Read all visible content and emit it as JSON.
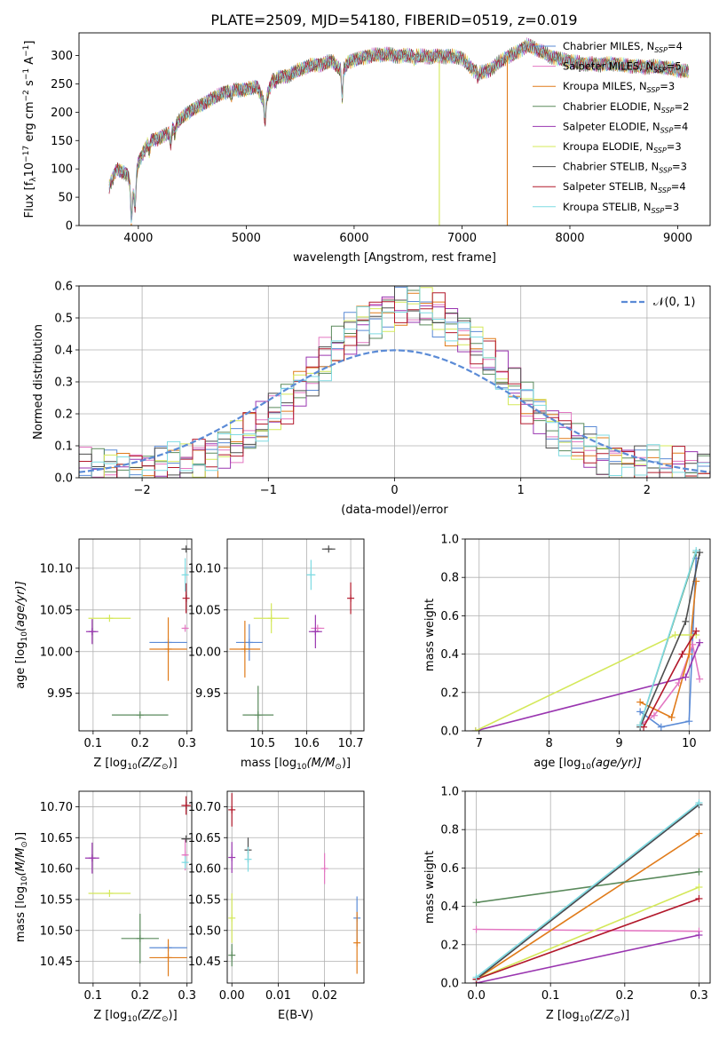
{
  "page": {
    "title": "PLATE=2509, MJD=54180, FIBERID=0519, z=0.019"
  },
  "colors": {
    "Chabrier MILES": "#5b8bd6",
    "Salpeter MILES": "#e377c2",
    "Kroupa MILES": "#e07b1a",
    "Chabrier ELODIE": "#5a8a5c",
    "Salpeter ELODIE": "#9a36b0",
    "Kroupa ELODIE": "#d4e85a",
    "Chabrier STELIB": "#4d4d4d",
    "Salpeter STELIB": "#b2182b",
    "Kroupa STELIB": "#7fdbe2",
    "normal": "#5b8bd6"
  },
  "chart_data": [
    {
      "id": "spectrum",
      "type": "line",
      "title": "PLATE=2509, MJD=54180, FIBERID=0519, z=0.019",
      "xlabel": "wavelength [Angstrom, rest frame]",
      "ylabel_parts": {
        "a": "Flux [f",
        "b": "λ",
        "c": "10",
        "d": "−17",
        "e": " erg cm",
        "f": "−2",
        "g": " s",
        "h": "−1",
        "i": " A",
        "j": "−1",
        "k": "]"
      },
      "xlim": [
        3450,
        9300
      ],
      "ylim": [
        0,
        340
      ],
      "xticks": [
        4000,
        5000,
        6000,
        7000,
        8000,
        9000
      ],
      "yticks": [
        0,
        50,
        100,
        150,
        200,
        250,
        300
      ],
      "legend_position": "upper right",
      "series": [
        {
          "base": "Chabrier MILES, N",
          "sub": "SSP",
          "suf": "=4",
          "color": "#5b8bd6"
        },
        {
          "base": "Salpeter MILES, N",
          "sub": "SSP",
          "suf": "=5",
          "color": "#e377c2"
        },
        {
          "base": "Kroupa MILES, N",
          "sub": "SSP",
          "suf": "=3",
          "color": "#e07b1a"
        },
        {
          "base": "Chabrier ELODIE, N",
          "sub": "SSP",
          "suf": "=2",
          "color": "#5a8a5c"
        },
        {
          "base": "Salpeter ELODIE, N",
          "sub": "SSP",
          "suf": "=4",
          "color": "#9a36b0"
        },
        {
          "base": "Kroupa ELODIE, N",
          "sub": "SSP",
          "suf": "=3",
          "color": "#d4e85a"
        },
        {
          "base": "Chabrier STELIB, N",
          "sub": "SSP",
          "suf": "=3",
          "color": "#4d4d4d"
        },
        {
          "base": "Salpeter STELIB, N",
          "sub": "SSP",
          "suf": "=4",
          "color": "#b2182b"
        },
        {
          "base": "Kroupa STELIB, N",
          "sub": "SSP",
          "suf": "=3",
          "color": "#7fdbe2"
        }
      ],
      "continuum": [
        [
          3730,
          70
        ],
        [
          3800,
          100
        ],
        [
          3900,
          90
        ],
        [
          3950,
          55
        ],
        [
          4000,
          110
        ],
        [
          4100,
          150
        ],
        [
          4200,
          155
        ],
        [
          4300,
          165
        ],
        [
          4400,
          190
        ],
        [
          4500,
          205
        ],
        [
          4600,
          215
        ],
        [
          4700,
          225
        ],
        [
          4800,
          235
        ],
        [
          4900,
          240
        ],
        [
          5000,
          240
        ],
        [
          5100,
          245
        ],
        [
          5170,
          215
        ],
        [
          5250,
          260
        ],
        [
          5400,
          265
        ],
        [
          5500,
          275
        ],
        [
          5600,
          283
        ],
        [
          5700,
          285
        ],
        [
          5800,
          290
        ],
        [
          5890,
          270
        ],
        [
          5950,
          290
        ],
        [
          6100,
          298
        ],
        [
          6200,
          300
        ],
        [
          6300,
          302
        ],
        [
          6400,
          300
        ],
        [
          6500,
          300
        ],
        [
          6600,
          298
        ],
        [
          6700,
          298
        ],
        [
          6800,
          300
        ],
        [
          6900,
          298
        ],
        [
          7000,
          295
        ],
        [
          7100,
          275
        ],
        [
          7200,
          270
        ],
        [
          7300,
          280
        ],
        [
          7400,
          295
        ],
        [
          7500,
          305
        ],
        [
          7600,
          318
        ],
        [
          7700,
          310
        ],
        [
          7800,
          300
        ],
        [
          7900,
          295
        ],
        [
          8000,
          290
        ],
        [
          8100,
          285
        ],
        [
          8200,
          285
        ],
        [
          8300,
          285
        ],
        [
          8400,
          285
        ],
        [
          8500,
          282
        ],
        [
          8600,
          282
        ],
        [
          8700,
          280
        ],
        [
          8800,
          280
        ],
        [
          8900,
          278
        ],
        [
          9000,
          275
        ],
        [
          9100,
          272
        ]
      ],
      "absorption_lines": [
        [
          3935,
          55
        ],
        [
          3970,
          45
        ],
        [
          4102,
          20
        ],
        [
          4300,
          20
        ],
        [
          4340,
          15
        ],
        [
          4861,
          10
        ],
        [
          5175,
          35
        ],
        [
          5270,
          10
        ],
        [
          5890,
          45
        ],
        [
          6563,
          8
        ],
        [
          7150,
          12
        ]
      ],
      "dropouts": [
        {
          "name": "Kroupa MILES",
          "x": 3935,
          "color": "#e07b1a"
        },
        {
          "name": "Kroupa ELODIE",
          "x": 6790,
          "color": "#d4e85a"
        },
        {
          "name": "Kroupa MILES",
          "x": 7420,
          "color": "#e07b1a"
        }
      ]
    },
    {
      "id": "residuals",
      "type": "line",
      "xlabel": "(data-model)/error",
      "ylabel": "Normed distribution",
      "xlim": [
        -2.5,
        2.5
      ],
      "ylim": [
        0,
        0.6
      ],
      "xticks": [
        -2,
        -1,
        0,
        1,
        2
      ],
      "yticks": [
        0.0,
        0.1,
        0.2,
        0.3,
        0.4,
        0.5,
        0.6
      ],
      "grid": true,
      "legend_label": "𝒩(0, 1)",
      "legend_position": "upper right",
      "normal_curve": {
        "mean": 0,
        "sigma": 1
      },
      "bin_width": 0.1
    },
    {
      "id": "age_vs_Z",
      "type": "scatter",
      "xlabel_parts": {
        "a": "Z [log",
        "b": "10",
        "c": "(Z/Z",
        "d": "⊙",
        "e": ")]"
      },
      "ylabel_parts": {
        "a": "age  [log",
        "b": "10",
        "c": "(age/yr)]"
      },
      "xlim": [
        0.07,
        0.31
      ],
      "ylim": [
        9.905,
        10.135
      ],
      "xticks": [
        0.1,
        0.2,
        0.3
      ],
      "yticks": [
        9.95,
        10.0,
        10.05,
        10.1
      ],
      "points": [
        {
          "name": "Chabrier MILES",
          "x": 0.26,
          "y": 10.011,
          "xerr": 0.04,
          "yerr": 0.0
        },
        {
          "name": "Salpeter MILES",
          "x": 0.296,
          "y": 10.028,
          "xerr": 0.005,
          "yerr": 0.0
        },
        {
          "name": "Kroupa MILES",
          "x": 0.26,
          "y": 10.003,
          "xerr": 0.04,
          "yerr": 0.038
        },
        {
          "name": "Chabrier ELODIE",
          "x": 0.2,
          "y": 9.924,
          "xerr": 0.06,
          "yerr": 0.0
        },
        {
          "name": "Salpeter ELODIE",
          "x": 0.098,
          "y": 10.024,
          "xerr": 0.013,
          "yerr": 0.015
        },
        {
          "name": "Kroupa ELODIE",
          "x": 0.135,
          "y": 10.04,
          "xerr": 0.045,
          "yerr": 0.0
        },
        {
          "name": "Chabrier STELIB",
          "x": 0.298,
          "y": 10.123,
          "xerr": 0.01,
          "yerr": 0.0
        },
        {
          "name": "Salpeter STELIB",
          "x": 0.298,
          "y": 10.064,
          "xerr": 0.0,
          "yerr": 0.018
        },
        {
          "name": "Kroupa STELIB",
          "x": 0.296,
          "y": 10.092,
          "xerr": 0.005,
          "yerr": 0.02
        }
      ]
    },
    {
      "id": "age_vs_mass",
      "type": "scatter",
      "xlabel_parts": {
        "a": "mass [log",
        "b": "10",
        "c": "(M/M",
        "d": "⊙",
        "e": ")]"
      },
      "xlim": [
        10.42,
        10.73
      ],
      "ylim": [
        9.905,
        10.135
      ],
      "xticks": [
        10.5,
        10.6,
        10.7
      ],
      "yticks": [
        9.95,
        10.0,
        10.05,
        10.1
      ],
      "points": [
        {
          "name": "Chabrier MILES",
          "x": 10.47,
          "y": 10.011,
          "xerr": 0.03,
          "yerr": 0.022
        },
        {
          "name": "Salpeter MILES",
          "x": 10.625,
          "y": 10.028,
          "xerr": 0.015,
          "yerr": 0.0
        },
        {
          "name": "Kroupa MILES",
          "x": 10.46,
          "y": 10.003,
          "xerr": 0.035,
          "yerr": 0.034
        },
        {
          "name": "Chabrier ELODIE",
          "x": 10.49,
          "y": 9.924,
          "xerr": 0.035,
          "yerr": 0.035
        },
        {
          "name": "Salpeter ELODIE",
          "x": 10.62,
          "y": 10.024,
          "xerr": 0.015,
          "yerr": 0.02
        },
        {
          "name": "Kroupa ELODIE",
          "x": 10.52,
          "y": 10.04,
          "xerr": 0.04,
          "yerr": 0.018
        },
        {
          "name": "Chabrier STELIB",
          "x": 10.65,
          "y": 10.123,
          "xerr": 0.015,
          "yerr": 0.0
        },
        {
          "name": "Salpeter STELIB",
          "x": 10.7,
          "y": 10.064,
          "xerr": 0.0,
          "yerr": 0.019
        },
        {
          "name": "Kroupa STELIB",
          "x": 10.61,
          "y": 10.092,
          "xerr": 0.01,
          "yerr": 0.018
        }
      ]
    },
    {
      "id": "massweight_vs_age",
      "type": "line",
      "xlabel_parts": {
        "a": "age  [log",
        "b": "10",
        "c": "(age/yr)]"
      },
      "ylabel": "mass weight",
      "xlim": [
        6.8,
        10.3
      ],
      "ylim": [
        0,
        1.0
      ],
      "xticks": [
        7,
        8,
        9,
        10
      ],
      "yticks": [
        0.0,
        0.2,
        0.4,
        0.6,
        0.8,
        1.0
      ],
      "grid": true,
      "series": [
        {
          "name": "Chabrier MILES",
          "x": [
            9.3,
            9.6,
            10.0,
            10.1
          ],
          "y": [
            0.1,
            0.02,
            0.05,
            0.9
          ]
        },
        {
          "name": "Salpeter MILES",
          "x": [
            9.3,
            9.5,
            9.85,
            10.05,
            10.15
          ],
          "y": [
            0.03,
            0.08,
            0.25,
            0.45,
            0.27
          ]
        },
        {
          "name": "Kroupa MILES",
          "x": [
            9.3,
            9.75,
            10.0,
            10.1
          ],
          "y": [
            0.15,
            0.07,
            0.4,
            0.78
          ]
        },
        {
          "name": "Chabrier ELODIE",
          "x": [
            9.3,
            10.1
          ],
          "y": [
            0.03,
            0.93
          ]
        },
        {
          "name": "Salpeter ELODIE",
          "x": [
            6.95,
            9.95,
            10.15
          ],
          "y": [
            0.0,
            0.28,
            0.46
          ]
        },
        {
          "name": "Kroupa ELODIE",
          "x": [
            6.95,
            9.8,
            10.1
          ],
          "y": [
            0.0,
            0.5,
            0.5
          ]
        },
        {
          "name": "Chabrier STELIB",
          "x": [
            9.3,
            9.95,
            10.15
          ],
          "y": [
            0.02,
            0.57,
            0.93
          ]
        },
        {
          "name": "Salpeter STELIB",
          "x": [
            9.35,
            9.9,
            10.1
          ],
          "y": [
            0.02,
            0.4,
            0.52
          ]
        },
        {
          "name": "Kroupa STELIB",
          "x": [
            9.3,
            10.1
          ],
          "y": [
            0.03,
            0.94
          ]
        }
      ]
    },
    {
      "id": "mass_vs_Z",
      "type": "scatter",
      "xlabel_parts": {
        "a": "Z [log",
        "b": "10",
        "c": "(Z/Z",
        "d": "⊙",
        "e": ")]"
      },
      "ylabel_parts": {
        "a": "mass [log",
        "b": "10",
        "c": "(M/M",
        "d": "⊙",
        "e": ")]"
      },
      "xlim": [
        0.07,
        0.31
      ],
      "ylim": [
        10.415,
        10.725
      ],
      "xticks": [
        0.1,
        0.2,
        0.3
      ],
      "yticks": [
        10.45,
        10.5,
        10.55,
        10.6,
        10.65,
        10.7
      ],
      "points": [
        {
          "name": "Chabrier MILES",
          "x": 0.26,
          "y": 10.472,
          "xerr": 0.04,
          "yerr": 0.0
        },
        {
          "name": "Salpeter MILES",
          "x": 0.296,
          "y": 10.622,
          "xerr": 0.005,
          "yerr": 0.025
        },
        {
          "name": "Kroupa MILES",
          "x": 0.26,
          "y": 10.456,
          "xerr": 0.04,
          "yerr": 0.03
        },
        {
          "name": "Chabrier ELODIE",
          "x": 0.2,
          "y": 10.487,
          "xerr": 0.04,
          "yerr": 0.04
        },
        {
          "name": "Salpeter ELODIE",
          "x": 0.098,
          "y": 10.617,
          "xerr": 0.015,
          "yerr": 0.025
        },
        {
          "name": "Kroupa ELODIE",
          "x": 0.135,
          "y": 10.56,
          "xerr": 0.045,
          "yerr": 0.0
        },
        {
          "name": "Chabrier STELIB",
          "x": 0.298,
          "y": 10.648,
          "xerr": 0.01,
          "yerr": 0.0
        },
        {
          "name": "Salpeter STELIB",
          "x": 0.298,
          "y": 10.702,
          "xerr": 0.01,
          "yerr": 0.015
        },
        {
          "name": "Kroupa STELIB",
          "x": 0.296,
          "y": 10.61,
          "xerr": 0.005,
          "yerr": 0.01
        }
      ]
    },
    {
      "id": "mass_vs_ebv",
      "type": "scatter",
      "xlabel": "E(B-V)",
      "xlim": [
        -0.001,
        0.0285
      ],
      "ylim": [
        10.415,
        10.725
      ],
      "xticks": [
        0.0,
        0.01,
        0.02
      ],
      "yticks": [
        10.45,
        10.5,
        10.55,
        10.6,
        10.65,
        10.7
      ],
      "points": [
        {
          "name": "Chabrier MILES",
          "x": 0.027,
          "y": 10.52,
          "yerr": 0.035
        },
        {
          "name": "Salpeter MILES",
          "x": 0.02,
          "y": 10.6,
          "yerr": 0.025
        },
        {
          "name": "Kroupa MILES",
          "x": 0.027,
          "y": 10.48,
          "yerr": 0.05
        },
        {
          "name": "Chabrier ELODIE",
          "x": 0.0,
          "y": 10.46,
          "yerr": 0.018
        },
        {
          "name": "Salpeter ELODIE",
          "x": 0.0,
          "y": 10.618,
          "yerr": 0.025
        },
        {
          "name": "Kroupa ELODIE",
          "x": 0.0,
          "y": 10.52,
          "yerr": 0.04
        },
        {
          "name": "Chabrier STELIB",
          "x": 0.0035,
          "y": 10.63,
          "yerr": 0.02
        },
        {
          "name": "Salpeter STELIB",
          "x": 0.0,
          "y": 10.695,
          "yerr": 0.027
        },
        {
          "name": "Kroupa STELIB",
          "x": 0.0035,
          "y": 10.615,
          "yerr": 0.02
        }
      ]
    },
    {
      "id": "massweight_vs_Z",
      "type": "line",
      "xlabel_parts": {
        "a": "Z [log",
        "b": "10",
        "c": "(Z/Z",
        "d": "⊙",
        "e": ")]"
      },
      "ylabel": "mass weight",
      "xlim": [
        -0.015,
        0.315
      ],
      "ylim": [
        0,
        1.0
      ],
      "xticks": [
        0.0,
        0.1,
        0.2,
        0.3
      ],
      "yticks": [
        0.0,
        0.2,
        0.4,
        0.6,
        0.8,
        1.0
      ],
      "grid": true,
      "series": [
        {
          "name": "Chabrier MILES",
          "x": [
            0.0,
            0.3
          ],
          "y": [
            0.02,
            0.93
          ]
        },
        {
          "name": "Salpeter MILES",
          "x": [
            0.0,
            0.3
          ],
          "y": [
            0.28,
            0.27
          ]
        },
        {
          "name": "Kroupa MILES",
          "x": [
            0.0,
            0.3
          ],
          "y": [
            0.02,
            0.78
          ]
        },
        {
          "name": "Chabrier ELODIE",
          "x": [
            0.0,
            0.3
          ],
          "y": [
            0.42,
            0.58
          ]
        },
        {
          "name": "Salpeter ELODIE",
          "x": [
            0.0,
            0.3
          ],
          "y": [
            0.0,
            0.25
          ]
        },
        {
          "name": "Kroupa ELODIE",
          "x": [
            0.0,
            0.3
          ],
          "y": [
            0.02,
            0.5
          ]
        },
        {
          "name": "Chabrier STELIB",
          "x": [
            0.0,
            0.3
          ],
          "y": [
            0.02,
            0.93
          ]
        },
        {
          "name": "Salpeter STELIB",
          "x": [
            0.0,
            0.3
          ],
          "y": [
            0.02,
            0.44
          ]
        },
        {
          "name": "Kroupa STELIB",
          "x": [
            0.0,
            0.3
          ],
          "y": [
            0.03,
            0.94
          ]
        }
      ]
    }
  ]
}
